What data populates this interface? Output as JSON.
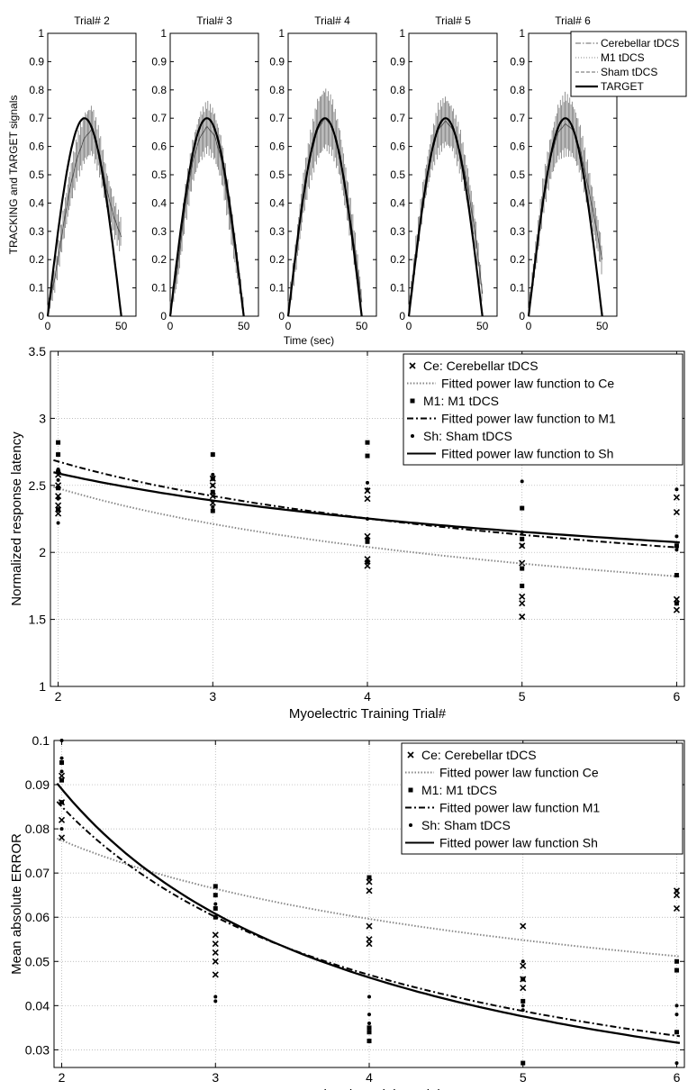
{
  "chart_data": [
    {
      "id": "tracking",
      "type": "line",
      "ylabel": "TRACKING and TARGET signals",
      "xlabel": "Time (sec)",
      "xlim": [
        0,
        60
      ],
      "ylim": [
        0,
        1
      ],
      "xticks": [
        0,
        50
      ],
      "yticks": [
        0,
        0.1,
        0.2,
        0.3,
        0.4,
        0.5,
        0.6,
        0.7,
        0.8,
        0.9,
        1
      ],
      "ytick_labels": [
        "0",
        "0.1",
        "0.2",
        "0.3",
        "0.4",
        "0.5",
        "0.6",
        "0.7",
        "0.8",
        "0.9",
        "1"
      ],
      "legend": {
        "position": "top-right of last panel",
        "entries": [
          "Cerebellar tDCS",
          "M1 tDCS",
          "Sham tDCS",
          "TARGET"
        ]
      },
      "target": {
        "duration": 50,
        "peak_time": 25,
        "peak": 0.7
      },
      "panels": [
        {
          "title": "Trial# 2",
          "x": [
            0,
            5,
            10,
            15,
            20,
            25,
            30,
            35,
            40,
            45,
            50
          ],
          "mean": [
            0.02,
            0.14,
            0.3,
            0.45,
            0.56,
            0.63,
            0.66,
            0.58,
            0.45,
            0.35,
            0.28
          ],
          "error": [
            0.02,
            0.04,
            0.05,
            0.06,
            0.07,
            0.08,
            0.08,
            0.07,
            0.06,
            0.06,
            0.05
          ]
        },
        {
          "title": "Trial# 3",
          "x": [
            0,
            5,
            10,
            15,
            20,
            25,
            30,
            35,
            40,
            45,
            50
          ],
          "mean": [
            0.02,
            0.17,
            0.38,
            0.54,
            0.63,
            0.67,
            0.64,
            0.55,
            0.38,
            0.2,
            0.02
          ],
          "error": [
            0.02,
            0.05,
            0.06,
            0.07,
            0.08,
            0.08,
            0.08,
            0.07,
            0.06,
            0.05,
            0.02
          ]
        },
        {
          "title": "Trial# 4",
          "x": [
            0,
            5,
            10,
            15,
            20,
            25,
            30,
            35,
            40,
            45,
            50
          ],
          "mean": [
            0.02,
            0.2,
            0.42,
            0.56,
            0.66,
            0.7,
            0.67,
            0.58,
            0.42,
            0.25,
            0.05
          ],
          "error": [
            0.02,
            0.05,
            0.07,
            0.08,
            0.1,
            0.1,
            0.09,
            0.08,
            0.07,
            0.06,
            0.03
          ]
        },
        {
          "title": "Trial# 5",
          "x": [
            0,
            5,
            10,
            15,
            20,
            25,
            30,
            35,
            40,
            45,
            50
          ],
          "mean": [
            0.02,
            0.24,
            0.43,
            0.57,
            0.66,
            0.69,
            0.66,
            0.58,
            0.46,
            0.3,
            0.08
          ],
          "error": [
            0.02,
            0.04,
            0.05,
            0.06,
            0.08,
            0.08,
            0.07,
            0.07,
            0.06,
            0.05,
            0.03
          ]
        },
        {
          "title": "Trial# 6",
          "x": [
            0,
            5,
            10,
            15,
            20,
            25,
            30,
            35,
            40,
            45,
            50
          ],
          "mean": [
            0.02,
            0.22,
            0.43,
            0.56,
            0.65,
            0.68,
            0.66,
            0.59,
            0.47,
            0.34,
            0.2
          ],
          "error": [
            0.02,
            0.05,
            0.06,
            0.07,
            0.09,
            0.1,
            0.09,
            0.08,
            0.07,
            0.06,
            0.05
          ]
        }
      ]
    },
    {
      "id": "latency",
      "type": "scatter",
      "xlabel": "Myoelectric Training Trial#",
      "ylabel": "Normalized response latency",
      "xlim": [
        1.95,
        6.05
      ],
      "ylim": [
        1,
        3.5
      ],
      "xticks": [
        2,
        3,
        4,
        5,
        6
      ],
      "yticks": [
        1,
        1.5,
        2,
        2.5,
        3,
        3.5
      ],
      "grid": true,
      "legend": "top-right",
      "series": [
        {
          "name": "Ce: Cerebellar tDCS",
          "marker": "x",
          "x": [
            2,
            2,
            2,
            2,
            2,
            3,
            3,
            3,
            3,
            4,
            4,
            4,
            4,
            4,
            5,
            5,
            5,
            5,
            5,
            6,
            6,
            6,
            6
          ],
          "y": [
            2.29,
            2.35,
            2.42,
            2.5,
            2.58,
            2.37,
            2.42,
            2.5,
            2.55,
            1.9,
            1.95,
            2.12,
            2.4,
            2.46,
            1.52,
            1.62,
            1.67,
            1.92,
            2.05,
            1.57,
            1.65,
            2.3,
            2.41
          ]
        },
        {
          "name": "Fitted power law function to Ce",
          "line": "dotted",
          "fit": {
            "x": [
              2,
              3,
              4,
              5,
              6
            ],
            "y": [
              2.48,
              2.21,
              2.04,
              1.92,
              1.82
            ]
          }
        },
        {
          "name": "M1: M1 tDCS",
          "marker": "square",
          "x": [
            2,
            2,
            2,
            2,
            2,
            3,
            3,
            3,
            3,
            4,
            4,
            4,
            4,
            5,
            5,
            5,
            5,
            6,
            6,
            6
          ],
          "y": [
            2.32,
            2.48,
            2.6,
            2.73,
            2.82,
            2.31,
            2.45,
            2.55,
            2.73,
            1.93,
            2.08,
            2.72,
            2.82,
            1.75,
            1.88,
            2.1,
            2.33,
            1.62,
            1.83,
            2.05
          ]
        },
        {
          "name": "Fitted power law function to M1",
          "line": "dashdot",
          "fit": {
            "x": [
              2,
              3,
              4,
              5,
              6
            ],
            "y": [
              2.68,
              2.42,
              2.25,
              2.13,
              2.04
            ]
          }
        },
        {
          "name": "Sh: Sham tDCS",
          "marker": "dot",
          "x": [
            2,
            2,
            2,
            2,
            3,
            3,
            3,
            4,
            4,
            4,
            4,
            5,
            5,
            5,
            6,
            6,
            6
          ],
          "y": [
            2.4,
            2.54,
            2.62,
            2.22,
            2.34,
            2.5,
            2.58,
            2.25,
            2.52,
            2.47,
            2.1,
            2.53,
            2.05,
            2.15,
            2.02,
            2.47,
            2.12
          ]
        },
        {
          "name": "Fitted power law function to Sh",
          "line": "solid",
          "fit": {
            "x": [
              2,
              3,
              4,
              5,
              6
            ],
            "y": [
              2.59,
              2.39,
              2.25,
              2.15,
              2.08
            ]
          }
        }
      ]
    },
    {
      "id": "error",
      "type": "scatter",
      "xlabel": "Myoelectric Training Trial#",
      "ylabel": "Mean absolute ERROR",
      "xlim": [
        1.95,
        6.05
      ],
      "ylim": [
        0.026,
        0.1
      ],
      "xticks": [
        2,
        3,
        4,
        5,
        6
      ],
      "yticks": [
        0.03,
        0.04,
        0.05,
        0.06,
        0.07,
        0.08,
        0.09,
        0.1
      ],
      "ytick_labels": [
        "0.03",
        "0.04",
        "0.05",
        "0.06",
        "0.07",
        "0.08",
        "0.09",
        "0.1"
      ],
      "grid": true,
      "legend": "top-right",
      "series": [
        {
          "name": "Ce: Cerebellar tDCS",
          "marker": "x",
          "x": [
            2,
            2,
            2,
            2,
            3,
            3,
            3,
            3,
            3,
            4,
            4,
            4,
            4,
            4,
            5,
            5,
            5,
            5,
            6,
            6,
            6
          ],
          "y": [
            0.078,
            0.082,
            0.086,
            0.092,
            0.047,
            0.05,
            0.052,
            0.054,
            0.056,
            0.054,
            0.055,
            0.058,
            0.066,
            0.068,
            0.044,
            0.046,
            0.049,
            0.058,
            0.062,
            0.065,
            0.066
          ]
        },
        {
          "name": "Fitted power law function Ce",
          "line": "dotted",
          "fit": {
            "x": [
              2,
              3,
              4,
              5,
              6
            ],
            "y": [
              0.0775,
              0.066,
              0.06,
              0.055,
              0.051
            ]
          }
        },
        {
          "name": "M1: M1 tDCS",
          "marker": "square",
          "x": [
            2,
            2,
            2,
            3,
            3,
            3,
            3,
            4,
            4,
            4,
            4,
            5,
            5,
            5,
            6,
            6,
            6
          ],
          "y": [
            0.086,
            0.091,
            0.095,
            0.06,
            0.062,
            0.065,
            0.067,
            0.032,
            0.034,
            0.035,
            0.069,
            0.027,
            0.041,
            0.046,
            0.034,
            0.048,
            0.05
          ]
        },
        {
          "name": "Fitted power law function M1",
          "line": "dashdot",
          "fit": {
            "x": [
              2,
              3,
              4,
              5,
              6
            ],
            "y": [
              0.085,
              0.06,
              0.047,
              0.039,
              0.033
            ]
          }
        },
        {
          "name": "Sh: Sham tDCS",
          "marker": "dot",
          "x": [
            2,
            2,
            2,
            2,
            3,
            3,
            3,
            4,
            4,
            4,
            5,
            5,
            5,
            6,
            6,
            6,
            6
          ],
          "y": [
            0.08,
            0.093,
            0.096,
            0.1,
            0.041,
            0.042,
            0.063,
            0.036,
            0.038,
            0.042,
            0.039,
            0.04,
            0.05,
            0.027,
            0.038,
            0.04,
            0.066
          ]
        },
        {
          "name": "Fitted power law function Sh",
          "line": "solid",
          "fit": {
            "x": [
              2,
              3,
              4,
              5,
              6
            ],
            "y": [
              0.09,
              0.06,
              0.046,
              0.0375,
              0.032
            ]
          }
        }
      ]
    }
  ]
}
